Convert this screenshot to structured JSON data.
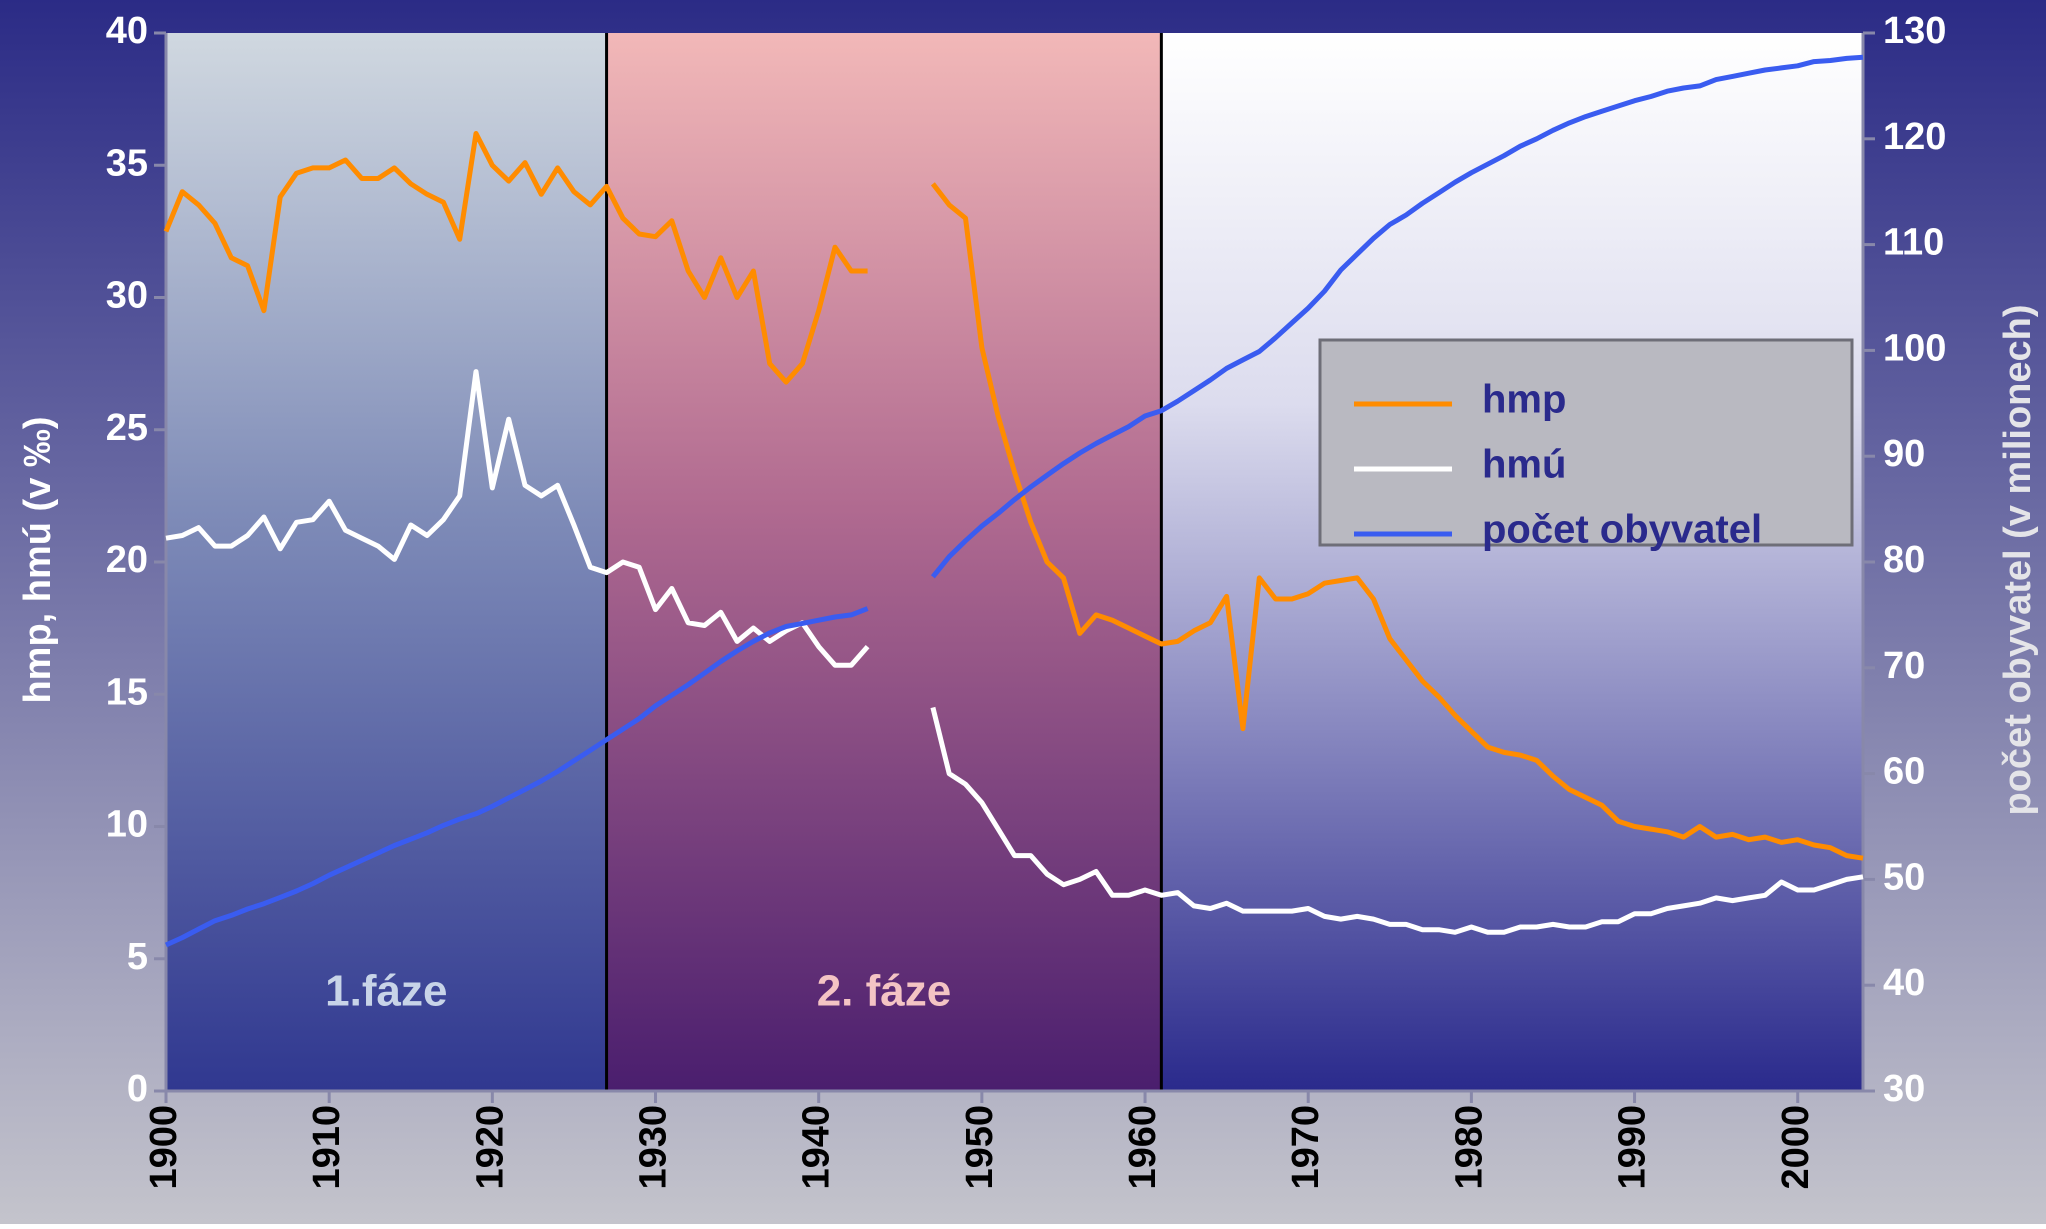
{
  "chart_data": {
    "type": "line",
    "y_label": "hmp, hmú (v ‰)",
    "y2_label": "počet obyvatel (v milionech)",
    "x": [
      1900,
      1901,
      1902,
      1903,
      1904,
      1905,
      1906,
      1907,
      1908,
      1909,
      1910,
      1911,
      1912,
      1913,
      1914,
      1915,
      1916,
      1917,
      1918,
      1919,
      1920,
      1921,
      1922,
      1923,
      1924,
      1925,
      1926,
      1927,
      1928,
      1929,
      1930,
      1931,
      1932,
      1933,
      1934,
      1935,
      1936,
      1937,
      1938,
      1939,
      1940,
      1941,
      1942,
      1943,
      1944,
      1945,
      1946,
      1947,
      1948,
      1949,
      1950,
      1951,
      1952,
      1953,
      1954,
      1955,
      1956,
      1957,
      1958,
      1959,
      1960,
      1961,
      1962,
      1963,
      1964,
      1965,
      1966,
      1967,
      1968,
      1969,
      1970,
      1971,
      1972,
      1973,
      1974,
      1975,
      1976,
      1977,
      1978,
      1979,
      1980,
      1981,
      1982,
      1983,
      1984,
      1985,
      1986,
      1987,
      1988,
      1989,
      1990,
      1991,
      1992,
      1993,
      1994,
      1995,
      1996,
      1997,
      1998,
      1999,
      2000,
      2001,
      2002,
      2003,
      2004
    ],
    "series": [
      {
        "name": "hmp",
        "color": "#ff8c00",
        "values": [
          32.5,
          34.0,
          33.5,
          32.8,
          31.5,
          31.2,
          29.5,
          33.8,
          34.7,
          34.9,
          34.9,
          35.2,
          34.5,
          34.5,
          34.9,
          34.3,
          33.9,
          33.6,
          32.2,
          36.2,
          35.0,
          34.4,
          35.1,
          33.9,
          34.9,
          34.0,
          33.5,
          34.2,
          33.0,
          32.4,
          32.3,
          32.9,
          31.0,
          30.0,
          31.5,
          30.0,
          31.0,
          27.5,
          26.8,
          27.5,
          29.5,
          31.9,
          31.0,
          31.0,
          null,
          null,
          null,
          34.3,
          33.5,
          33.0,
          28.1,
          25.5,
          23.4,
          21.5,
          20.0,
          19.4,
          17.3,
          18.0,
          17.8,
          17.5,
          17.2,
          16.9,
          17.0,
          17.4,
          17.7,
          18.7,
          13.7,
          19.4,
          18.6,
          18.6,
          18.8,
          19.2,
          19.3,
          19.4,
          18.6,
          17.1,
          16.3,
          15.5,
          14.9,
          14.2,
          13.6,
          13.0,
          12.8,
          12.7,
          12.5,
          11.9,
          11.4,
          11.1,
          10.8,
          10.2,
          10.0,
          9.9,
          9.8,
          9.6,
          10.0,
          9.6,
          9.7,
          9.5,
          9.6,
          9.4,
          9.5,
          9.3,
          9.2,
          8.9,
          8.8
        ]
      },
      {
        "name": "hmú",
        "color": "#ffffff",
        "values": [
          20.9,
          21.0,
          21.3,
          20.6,
          20.6,
          21.0,
          21.7,
          20.5,
          21.5,
          21.6,
          22.3,
          21.2,
          20.9,
          20.6,
          20.1,
          21.4,
          21.0,
          21.6,
          22.5,
          27.2,
          22.8,
          25.4,
          22.9,
          22.5,
          22.9,
          21.4,
          19.8,
          19.6,
          20.0,
          19.8,
          18.2,
          19.0,
          17.7,
          17.6,
          18.1,
          17.0,
          17.5,
          17.0,
          17.4,
          17.7,
          16.8,
          16.1,
          16.1,
          16.8,
          null,
          null,
          null,
          14.5,
          12.0,
          11.6,
          10.9,
          9.9,
          8.9,
          8.9,
          8.2,
          7.8,
          8.0,
          8.3,
          7.4,
          7.4,
          7.6,
          7.4,
          7.5,
          7.0,
          6.9,
          7.1,
          6.8,
          6.8,
          6.8,
          6.8,
          6.9,
          6.6,
          6.5,
          6.6,
          6.5,
          6.3,
          6.3,
          6.1,
          6.1,
          6.0,
          6.2,
          6.0,
          6.0,
          6.2,
          6.2,
          6.3,
          6.2,
          6.2,
          6.4,
          6.4,
          6.7,
          6.7,
          6.9,
          7.0,
          7.1,
          7.3,
          7.2,
          7.3,
          7.4,
          7.9,
          7.6,
          7.6,
          7.8,
          8.0,
          8.1
        ]
      },
      {
        "name": "počet obyvatel",
        "color": "#3a5cf0",
        "axis": "y2",
        "values": [
          43.8,
          44.5,
          45.3,
          46.1,
          46.6,
          47.2,
          47.7,
          48.3,
          48.9,
          49.6,
          50.4,
          51.1,
          51.8,
          52.5,
          53.2,
          53.8,
          54.4,
          55.1,
          55.7,
          56.2,
          56.9,
          57.7,
          58.5,
          59.3,
          60.2,
          61.2,
          62.2,
          63.2,
          64.2,
          65.2,
          66.4,
          67.4,
          68.4,
          69.5,
          70.6,
          71.6,
          72.5,
          73.3,
          73.9,
          74.2,
          74.5,
          74.8,
          75.0,
          75.6,
          null,
          null,
          null,
          78.6,
          80.5,
          82.0,
          83.4,
          84.6,
          85.9,
          87.1,
          88.2,
          89.3,
          90.3,
          91.2,
          92.0,
          92.8,
          93.8,
          94.3,
          95.2,
          96.2,
          97.2,
          98.3,
          99.1,
          99.9,
          101.2,
          102.6,
          104.0,
          105.6,
          107.6,
          109.1,
          110.6,
          111.9,
          112.8,
          113.9,
          114.9,
          115.9,
          116.8,
          117.6,
          118.4,
          119.3,
          120.0,
          120.8,
          121.5,
          122.1,
          122.6,
          123.1,
          123.6,
          124.0,
          124.5,
          124.8,
          125.0,
          125.6,
          125.9,
          126.2,
          126.5,
          126.7,
          126.9,
          127.3,
          127.4,
          127.6,
          127.7
        ]
      }
    ],
    "phases": [
      {
        "label": "1.fáze",
        "from": 1900,
        "to": 1927
      },
      {
        "label": "2. fáze",
        "from": 1927,
        "to": 1961
      }
    ],
    "xlim": [
      1900,
      2004
    ],
    "xticks": [
      1900,
      1910,
      1920,
      1930,
      1940,
      1950,
      1960,
      1970,
      1980,
      1990,
      2000
    ],
    "ylim": [
      0,
      40
    ],
    "yticks": [
      0,
      5,
      10,
      15,
      20,
      25,
      30,
      35,
      40
    ],
    "y2lim": [
      30,
      130
    ],
    "y2ticks": [
      30,
      40,
      50,
      60,
      70,
      80,
      90,
      100,
      110,
      120,
      130
    ],
    "legend": "right"
  }
}
